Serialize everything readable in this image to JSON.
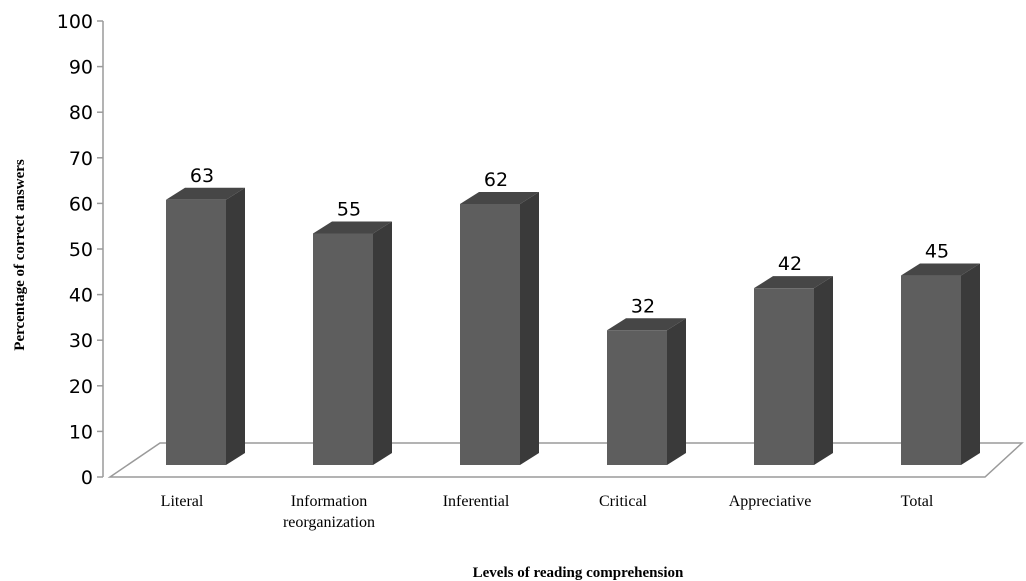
{
  "chart_data": {
    "type": "bar",
    "style": "3d-column",
    "categories": [
      "Literal",
      "Information reorganization",
      "Inferential",
      "Critical",
      "Appreciative",
      "Total"
    ],
    "category_display": [
      [
        "Literal"
      ],
      [
        "Information",
        "reorganization"
      ],
      [
        "Inferential"
      ],
      [
        "Critical"
      ],
      [
        "Appreciative"
      ],
      [
        "Total"
      ]
    ],
    "values": [
      63,
      55,
      62,
      32,
      42,
      45
    ],
    "data_labels": [
      "63",
      "55",
      "62",
      "32",
      "42",
      "45"
    ],
    "title": "",
    "xlabel": "Levels of reading comprehension",
    "ylabel": "Percentage of correct answers",
    "ylim": [
      0,
      100
    ],
    "yticks": [
      "0",
      "10",
      "20",
      "30",
      "40",
      "50",
      "60",
      "70",
      "80",
      "90",
      "100"
    ],
    "grid": false,
    "legend": "none",
    "colors": {
      "bar_front": "#5e5e5e",
      "bar_side": "#3a3a3a",
      "bar_top": "#464646",
      "axis": "#9a9a9a",
      "text": "#000000"
    }
  }
}
